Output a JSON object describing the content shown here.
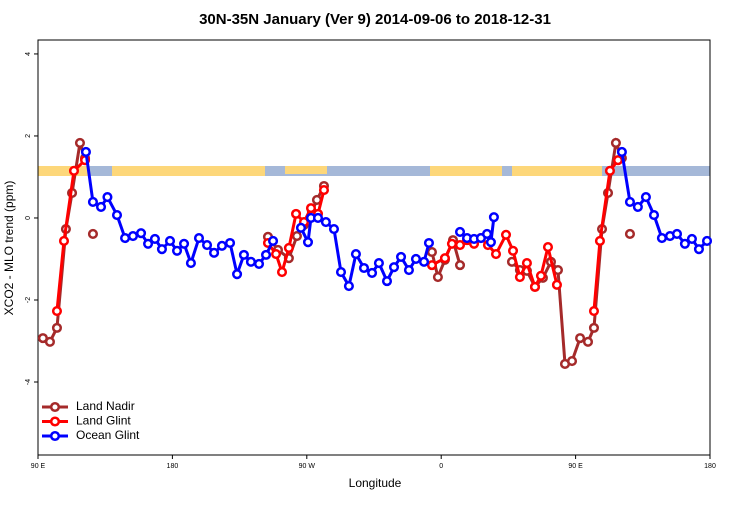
{
  "chart_data": {
    "type": "line",
    "title": "30N-35N January (Ver 9)   2014-09-06 to 2018-12-31",
    "x_label": "Longitude",
    "y_label": "XCO2 - MLO trend (ppm)",
    "xlim": [
      90,
      540
    ],
    "ylim": [
      -5.78,
      4.34
    ],
    "xticks": [
      {
        "value": 90,
        "label": "90 E"
      },
      180,
      {
        "value": 270,
        "label": "90 W"
      },
      {
        "value": 360,
        "label": "0"
      },
      {
        "value": 450,
        "label": "90 E"
      },
      {
        "value": 540,
        "label": "180"
      }
    ],
    "yticks": [
      -4,
      -2,
      0,
      2,
      4
    ],
    "legend": "bottom-left",
    "series": [
      {
        "name": "Land Nadir",
        "color": "#a52a2a",
        "x": [
          93.3,
          98,
          102.7,
          108.7,
          112.8,
          118.1,
          121.5,
          null,
          126.8,
          null,
          244,
          250.7,
          258,
          263.4,
          268.1,
          273.4,
          276.8,
          281.5,
          null,
          353.8,
          357.8,
          362.5,
          367.9,
          372.6,
          null,
          407.4,
          412.7,
          417.4,
          422.8,
          428.1,
          433.5,
          438.2,
          442.9,
          447.6,
          453,
          458.3,
          462.3,
          467.7,
          471.7,
          477,
          481,
          null,
          486.4
        ],
        "values": [
          -2.93,
          -3.02,
          -2.68,
          -0.27,
          0.61,
          1.83,
          1.46,
          null,
          -0.39,
          null,
          -0.46,
          -0.78,
          -0.98,
          -0.44,
          -0.17,
          0.15,
          0.44,
          0.78,
          null,
          -0.83,
          -1.44,
          -1.02,
          -0.54,
          -1.15,
          null,
          -1.07,
          -1.27,
          -1.29,
          -1.68,
          -1.46,
          -1.07,
          -1.27,
          -3.56,
          -3.49,
          -2.93,
          -3.02,
          -2.68,
          -0.27,
          0.61,
          1.83,
          1.46,
          null,
          -0.39
        ]
      },
      {
        "name": "Land Glint",
        "color": "#ff0000",
        "x": [
          102.7,
          107.4,
          114.1,
          121.5,
          null,
          244,
          249.4,
          253.4,
          258,
          262.8,
          268.1,
          272.8,
          277.5,
          281.5,
          null,
          353.8,
          362.5,
          367.2,
          372.6,
          377.3,
          382,
          386.6,
          391.3,
          396.7,
          403.4,
          408.1,
          412.7,
          417.4,
          422.8,
          426.8,
          431.5,
          437.5,
          null,
          462.3,
          466.3,
          473,
          478.4
        ],
        "values": [
          -2.27,
          -0.56,
          1.15,
          1.41,
          null,
          -0.61,
          -0.88,
          -1.32,
          -0.73,
          0.1,
          -0.1,
          0.24,
          0.1,
          0.68,
          null,
          -1.15,
          -0.98,
          -0.63,
          -0.66,
          -0.54,
          -0.63,
          -0.49,
          -0.66,
          -0.88,
          -0.41,
          -0.8,
          -1.44,
          -1.1,
          -1.68,
          -1.41,
          -0.71,
          -1.63,
          null,
          -2.27,
          -0.56,
          1.15,
          1.41
        ]
      },
      {
        "name": "Ocean Glint",
        "color": "#0000ff",
        "x": [
          122.1,
          126.8,
          132.2,
          136.5,
          142.9,
          148.3,
          153.6,
          159,
          163.7,
          168.3,
          173,
          178.4,
          183.1,
          187.8,
          192.4,
          197.8,
          203.2,
          207.9,
          213.2,
          218.6,
          223.3,
          227.9,
          232.6,
          238,
          242.7,
          247.4,
          null,
          266.1,
          270.8,
          272.8,
          277.5,
          282.8,
          288.2,
          292.9,
          298.2,
          302.9,
          308.3,
          313.7,
          318.3,
          323.7,
          328.4,
          333.1,
          338.4,
          343.1,
          348.5,
          351.8,
          null,
          372.6,
          377.3,
          382,
          386.6,
          390.7,
          393.3,
          395.3,
          null,
          481,
          486.4,
          491.7,
          497.1,
          502.5,
          507.8,
          513.2,
          517.9,
          523.2,
          527.9,
          532.6,
          538
        ],
        "values": [
          1.61,
          0.39,
          0.27,
          0.51,
          0.07,
          -0.49,
          -0.44,
          -0.37,
          -0.63,
          -0.51,
          -0.76,
          -0.56,
          -0.8,
          -0.63,
          -1.1,
          -0.49,
          -0.66,
          -0.85,
          -0.68,
          -0.61,
          -1.37,
          -0.9,
          -1.07,
          -1.12,
          -0.9,
          -0.56,
          null,
          -0.24,
          -0.59,
          0,
          0,
          -0.1,
          -0.27,
          -1.32,
          -1.66,
          -0.88,
          -1.22,
          -1.34,
          -1.1,
          -1.54,
          -1.2,
          -0.95,
          -1.27,
          -1.0,
          -1.07,
          -0.61,
          null,
          -0.34,
          -0.49,
          -0.51,
          -0.49,
          -0.39,
          -0.59,
          0.02,
          null,
          1.61,
          0.39,
          0.27,
          0.51,
          0.07,
          -0.49,
          -0.44,
          -0.39,
          -0.63,
          -0.51,
          -0.76,
          -0.56
        ]
      }
    ]
  }
}
